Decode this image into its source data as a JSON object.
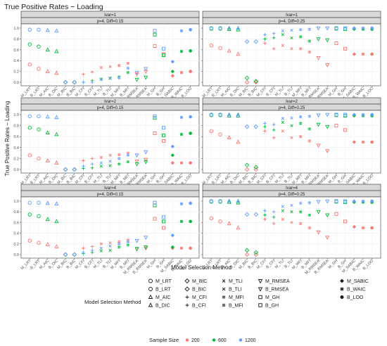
{
  "title": "True Positive Rates − Loading",
  "ylabel": "True Positive Rates − Loading",
  "xlabel": "Model Selection Method",
  "legend": {
    "method_title": "Model Selection Method",
    "size_title": "Sample Size",
    "items": [
      {
        "label": "M_LRT",
        "shape": "circle"
      },
      {
        "label": "B_LRT",
        "shape": "circle"
      },
      {
        "label": "M_AIC",
        "shape": "triangle"
      },
      {
        "label": "B_DIC",
        "shape": "triangle"
      },
      {
        "label": "M_BIC",
        "shape": "diamond"
      },
      {
        "label": "B_BIC",
        "shape": "diamond"
      },
      {
        "label": "M_CFI",
        "shape": "plus"
      },
      {
        "label": "B_CFI",
        "shape": "plus"
      },
      {
        "label": "M_TLI",
        "shape": "cross"
      },
      {
        "label": "B_TLI",
        "shape": "cross"
      },
      {
        "label": "M_MFI",
        "shape": "hash"
      },
      {
        "label": "B_MFI",
        "shape": "hash"
      },
      {
        "label": "M_RMSEA",
        "shape": "tri_down"
      },
      {
        "label": "B_RMSEA",
        "shape": "tri_down"
      },
      {
        "label": "M_GH",
        "shape": "square"
      },
      {
        "label": "B_GH",
        "shape": "square"
      },
      {
        "label": "M_SABIC",
        "shape": "diamond_filled"
      },
      {
        "label": "B_WAIC",
        "shape": "asterisk"
      },
      {
        "label": "B_LOO",
        "shape": "circle_filled"
      }
    ],
    "sizes": [
      {
        "label": "200",
        "color": "#F8766D"
      },
      {
        "label": "600",
        "color": "#00BA38"
      },
      {
        "label": "1200",
        "color": "#619CFF"
      }
    ]
  },
  "chart_data": {
    "type": "scatter",
    "title": "True Positive Rates − Loading",
    "xlabel": "Model Selection Method",
    "ylabel": "True Positive Rates − Loading",
    "ylim": [
      0,
      1
    ],
    "yticks": [
      "0.0",
      "0.2",
      "0.4",
      "0.6",
      "0.8",
      "1.0"
    ],
    "categories": [
      "M_LRT",
      "B_LRT",
      "M_AIC",
      "B_DIC",
      "M_BIC",
      "B_BIC",
      "M_CFI",
      "B_CFI",
      "M_TLI",
      "B_TLI",
      "M_MFI",
      "B_MFI",
      "M_RMSEA",
      "B_RMSEA",
      "M_GH",
      "B_GH",
      "M_SABIC",
      "B_WAIC",
      "B_LOO"
    ],
    "series_names": [
      "200",
      "600",
      "1200"
    ],
    "colors": [
      "#F8766D",
      "#00BA38",
      "#619CFF"
    ],
    "panels": [
      {
        "row": 0,
        "col": 0,
        "strip1": "Ivar=1",
        "strip2": "p=4, Diff=0.15",
        "values": {
          "200": [
            0.33,
            0.25,
            0.2,
            0.17,
            0.0,
            0.0,
            0.15,
            0.19,
            0.27,
            0.29,
            0.31,
            0.35,
            0.15,
            0.2,
            0.67,
            0.52,
            0.12,
            0.18,
            0.2
          ],
          "600": [
            0.7,
            0.66,
            0.6,
            0.57,
            0.0,
            0.0,
            0.0,
            0.03,
            0.06,
            0.08,
            0.1,
            0.18,
            0.05,
            0.09,
            0.88,
            0.5,
            0.2,
            0.57,
            0.58
          ],
          "1200": [
            0.97,
            0.97,
            0.96,
            0.95,
            0.0,
            0.0,
            0.0,
            0.0,
            0.05,
            0.07,
            0.08,
            0.26,
            0.18,
            0.25,
            0.95,
            0.62,
            0.38,
            0.95,
            0.97
          ]
        }
      },
      {
        "row": 0,
        "col": 1,
        "strip1": "Ivar=1",
        "strip2": "p=4, Diff=0.25",
        "values": {
          "200": [
            0.68,
            0.63,
            0.58,
            0.52,
            0.0,
            0.0,
            0.72,
            0.62,
            0.68,
            0.62,
            0.62,
            0.56,
            0.45,
            0.32,
            0.72,
            0.62,
            0.52,
            0.52,
            0.52
          ],
          "600": [
            0.99,
            0.99,
            0.98,
            0.97,
            0.08,
            0.02,
            0.8,
            0.82,
            0.88,
            0.82,
            0.84,
            0.76,
            0.8,
            0.78,
            0.99,
            0.98,
            0.98,
            0.98,
            0.98
          ],
          "1200": [
            1.0,
            1.0,
            1.0,
            1.0,
            0.75,
            0.75,
            0.88,
            0.9,
            0.95,
            0.96,
            0.97,
            0.98,
            1.0,
            1.0,
            1.0,
            1.0,
            1.0,
            1.0,
            1.0
          ]
        }
      },
      {
        "row": 1,
        "col": 0,
        "strip1": "Ivar=2",
        "strip2": "p=4, Diff=0.15",
        "values": {
          "200": [
            0.26,
            0.2,
            0.16,
            0.12,
            0.0,
            0.0,
            0.16,
            0.2,
            0.22,
            0.26,
            0.27,
            0.3,
            0.15,
            0.18,
            0.66,
            0.52,
            0.12,
            0.12,
            0.12
          ],
          "600": [
            0.76,
            0.73,
            0.67,
            0.64,
            0.0,
            0.0,
            0.02,
            0.03,
            0.06,
            0.07,
            0.1,
            0.14,
            0.1,
            0.14,
            0.94,
            0.62,
            0.26,
            0.64,
            0.66
          ],
          "1200": [
            0.97,
            0.97,
            0.96,
            0.95,
            0.0,
            0.0,
            0.06,
            0.1,
            0.12,
            0.15,
            0.2,
            0.26,
            0.26,
            0.32,
            0.97,
            0.76,
            0.42,
            0.95,
            0.96
          ]
        }
      },
      {
        "row": 1,
        "col": 1,
        "strip1": "Ivar=2",
        "strip2": "p=4, Diff=0.25",
        "values": {
          "200": [
            0.7,
            0.64,
            0.58,
            0.5,
            0.0,
            0.0,
            0.7,
            0.58,
            0.7,
            0.58,
            0.6,
            0.52,
            0.44,
            0.34,
            0.8,
            0.72,
            0.5,
            0.5,
            0.5
          ],
          "600": [
            0.99,
            0.99,
            0.98,
            0.98,
            0.08,
            0.04,
            0.78,
            0.72,
            0.86,
            0.8,
            0.84,
            0.74,
            0.82,
            0.78,
            0.99,
            0.98,
            0.98,
            0.98,
            0.98
          ],
          "1200": [
            1.0,
            1.0,
            1.0,
            1.0,
            0.78,
            0.78,
            0.84,
            0.82,
            0.93,
            0.94,
            0.96,
            0.97,
            0.99,
            1.0,
            1.0,
            1.0,
            1.0,
            1.0,
            1.0
          ]
        }
      },
      {
        "row": 2,
        "col": 0,
        "strip1": "Ivar=4",
        "strip2": "p=4, Diff=0.15",
        "values": {
          "200": [
            0.26,
            0.22,
            0.19,
            0.15,
            0.0,
            0.0,
            0.12,
            0.15,
            0.2,
            0.22,
            0.24,
            0.27,
            0.1,
            0.12,
            0.67,
            0.5,
            0.12,
            0.12,
            0.12
          ],
          "600": [
            0.75,
            0.72,
            0.66,
            0.62,
            0.0,
            0.0,
            0.02,
            0.04,
            0.07,
            0.08,
            0.14,
            0.18,
            0.11,
            0.14,
            0.92,
            0.62,
            0.14,
            0.62,
            0.62
          ],
          "1200": [
            0.97,
            0.97,
            0.96,
            0.95,
            0.0,
            0.0,
            0.04,
            0.08,
            0.12,
            0.16,
            0.2,
            0.24,
            0.26,
            0.32,
            0.97,
            0.7,
            0.36,
            0.95,
            0.96
          ]
        }
      },
      {
        "row": 2,
        "col": 1,
        "strip1": "Ivar=4",
        "strip2": "p=4, Diff=0.25",
        "values": {
          "200": [
            0.68,
            0.62,
            0.58,
            0.5,
            0.0,
            0.0,
            0.66,
            0.58,
            0.66,
            0.6,
            0.58,
            0.5,
            0.42,
            0.32,
            0.76,
            0.62,
            0.52,
            0.5,
            0.5
          ],
          "600": [
            0.99,
            0.99,
            0.98,
            0.97,
            0.08,
            0.04,
            0.74,
            0.7,
            0.82,
            0.8,
            0.8,
            0.74,
            0.8,
            0.74,
            0.99,
            0.98,
            0.98,
            0.98,
            0.98
          ],
          "1200": [
            1.0,
            1.0,
            1.0,
            1.0,
            0.75,
            0.75,
            0.82,
            0.8,
            0.9,
            0.92,
            0.96,
            0.97,
            0.99,
            1.0,
            1.0,
            1.0,
            1.0,
            1.0,
            1.0
          ]
        }
      }
    ]
  }
}
